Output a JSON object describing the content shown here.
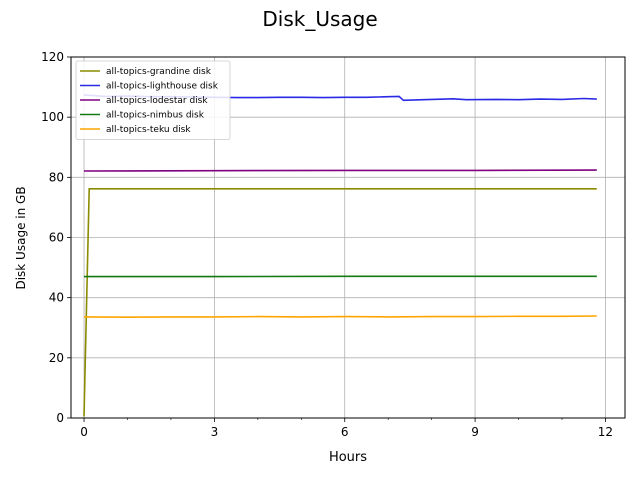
{
  "chart_data": {
    "type": "line",
    "title": "Disk_Usage",
    "xlabel": "Hours",
    "ylabel": "Disk Usage in GB",
    "xlim": [
      -0.3,
      12.45
    ],
    "ylim": [
      0,
      120
    ],
    "xticks": [
      0,
      3,
      6,
      9,
      12
    ],
    "yticks": [
      0,
      20,
      40,
      60,
      80,
      100,
      120
    ],
    "grid": true,
    "legend_position": "top-left",
    "series": [
      {
        "name": "all-topics-grandine disk",
        "color": "#8b8b00",
        "points": [
          [
            0,
            0.5
          ],
          [
            0.12,
            76.2
          ],
          [
            11.8,
            76.2
          ]
        ]
      },
      {
        "name": "all-topics-lighthouse disk",
        "color": "#2a2ae6",
        "points": [
          [
            0,
            107.4
          ],
          [
            0.5,
            106.9
          ],
          [
            1.0,
            107.0
          ],
          [
            1.5,
            106.8
          ],
          [
            2.0,
            106.8
          ],
          [
            2.5,
            106.7
          ],
          [
            3.0,
            106.6
          ],
          [
            3.5,
            106.5
          ],
          [
            4.0,
            106.5
          ],
          [
            4.5,
            106.6
          ],
          [
            5.0,
            106.6
          ],
          [
            5.5,
            106.5
          ],
          [
            6.0,
            106.6
          ],
          [
            6.5,
            106.6
          ],
          [
            7.0,
            106.8
          ],
          [
            7.25,
            106.9
          ],
          [
            7.35,
            105.6
          ],
          [
            8.0,
            105.9
          ],
          [
            8.5,
            106.1
          ],
          [
            8.8,
            105.8
          ],
          [
            9.5,
            105.9
          ],
          [
            10.0,
            105.8
          ],
          [
            10.5,
            106.0
          ],
          [
            11.0,
            105.9
          ],
          [
            11.5,
            106.2
          ],
          [
            11.8,
            106.0
          ]
        ]
      },
      {
        "name": "all-topics-lodestar disk",
        "color": "#800080",
        "points": [
          [
            0,
            82.1
          ],
          [
            3.0,
            82.2
          ],
          [
            6.0,
            82.3
          ],
          [
            9.0,
            82.3
          ],
          [
            11.8,
            82.4
          ]
        ]
      },
      {
        "name": "all-topics-nimbus disk",
        "color": "#137a13",
        "points": [
          [
            0,
            47.0
          ],
          [
            3.0,
            47.0
          ],
          [
            6.0,
            47.1
          ],
          [
            9.0,
            47.1
          ],
          [
            11.8,
            47.1
          ]
        ]
      },
      {
        "name": "all-topics-teku disk",
        "color": "#ffa500",
        "points": [
          [
            0,
            33.6
          ],
          [
            1.0,
            33.5
          ],
          [
            2.0,
            33.6
          ],
          [
            3.0,
            33.6
          ],
          [
            4.0,
            33.7
          ],
          [
            5.0,
            33.6
          ],
          [
            6.0,
            33.7
          ],
          [
            7.0,
            33.6
          ],
          [
            8.0,
            33.7
          ],
          [
            9.0,
            33.7
          ],
          [
            10.0,
            33.8
          ],
          [
            11.0,
            33.8
          ],
          [
            11.8,
            33.9
          ]
        ]
      }
    ]
  }
}
